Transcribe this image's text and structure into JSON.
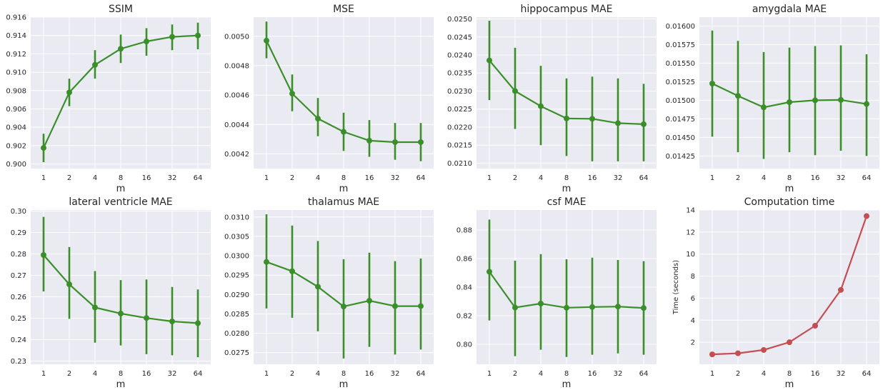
{
  "colors": {
    "green": "#3a8f28",
    "red": "#c44e52",
    "panel_bg": "#eaeaf2",
    "grid": "#ffffff"
  },
  "chart_data": [
    {
      "type": "line",
      "title": "SSIM",
      "xlabel": "m",
      "ylabel": "",
      "categories": [
        "1",
        "2",
        "4",
        "8",
        "16",
        "32",
        "64"
      ],
      "values": [
        0.90175,
        0.9078,
        0.9108,
        0.91255,
        0.91335,
        0.91385,
        0.914
      ],
      "error_low": [
        0.9002,
        0.9063,
        0.9093,
        0.911,
        0.9118,
        0.9124,
        0.9125
      ],
      "error_high": [
        0.9033,
        0.9093,
        0.9124,
        0.9141,
        0.9148,
        0.9152,
        0.9154
      ],
      "ylim": [
        0.8995,
        0.916
      ],
      "yticks": [
        0.9,
        0.902,
        0.904,
        0.906,
        0.908,
        0.91,
        0.912,
        0.914,
        0.916
      ],
      "yticklabels": [
        "0.900",
        "0.902",
        "0.904",
        "0.906",
        "0.908",
        "0.910",
        "0.912",
        "0.914",
        "0.916"
      ],
      "color": "#3a8f28"
    },
    {
      "type": "line",
      "title": "MSE",
      "xlabel": "m",
      "ylabel": "",
      "categories": [
        "1",
        "2",
        "4",
        "8",
        "16",
        "32",
        "64"
      ],
      "values": [
        0.00497,
        0.00461,
        0.00444,
        0.00435,
        0.00429,
        0.00428,
        0.00428
      ],
      "error_low": [
        0.00485,
        0.00449,
        0.00432,
        0.00422,
        0.00418,
        0.00416,
        0.00415
      ],
      "error_high": [
        0.0051,
        0.00474,
        0.00458,
        0.00448,
        0.00443,
        0.00441,
        0.00441
      ],
      "ylim": [
        0.0041,
        0.00513
      ],
      "yticks": [
        0.0042,
        0.0044,
        0.0046,
        0.0048,
        0.005
      ],
      "yticklabels": [
        "0.0042",
        "0.0044",
        "0.0046",
        "0.0048",
        "0.0050"
      ],
      "color": "#3a8f28"
    },
    {
      "type": "line",
      "title": "hippocampus MAE",
      "xlabel": "m",
      "ylabel": "",
      "categories": [
        "1",
        "2",
        "4",
        "8",
        "16",
        "32",
        "64"
      ],
      "values": [
        0.02385,
        0.023,
        0.02258,
        0.02224,
        0.02223,
        0.02211,
        0.02208
      ],
      "error_low": [
        0.02275,
        0.02195,
        0.0215,
        0.0212,
        0.02105,
        0.02105,
        0.02105
      ],
      "error_high": [
        0.02495,
        0.0242,
        0.0237,
        0.02335,
        0.0234,
        0.02335,
        0.0232
      ],
      "ylim": [
        0.02085,
        0.02505
      ],
      "yticks": [
        0.021,
        0.0215,
        0.022,
        0.0225,
        0.023,
        0.0235,
        0.024,
        0.0245,
        0.025
      ],
      "yticklabels": [
        "0.0210",
        "0.0215",
        "0.0220",
        "0.0225",
        "0.0230",
        "0.0235",
        "0.0240",
        "0.0245",
        "0.0250"
      ],
      "color": "#3a8f28"
    },
    {
      "type": "line",
      "title": "amygdala MAE",
      "xlabel": "m",
      "ylabel": "",
      "categories": [
        "1",
        "2",
        "4",
        "8",
        "16",
        "32",
        "64"
      ],
      "values": [
        0.015225,
        0.01506,
        0.014905,
        0.014975,
        0.015,
        0.015005,
        0.01495
      ],
      "error_low": [
        0.01451,
        0.0143,
        0.01421,
        0.0143,
        0.01426,
        0.01432,
        0.01425
      ],
      "error_high": [
        0.01594,
        0.0158,
        0.01565,
        0.01571,
        0.01573,
        0.01574,
        0.01562
      ],
      "ylim": [
        0.01408,
        0.01612
      ],
      "yticks": [
        0.01425,
        0.0145,
        0.01475,
        0.015,
        0.01525,
        0.0155,
        0.01575,
        0.016
      ],
      "yticklabels": [
        "0.01425",
        "0.01450",
        "0.01475",
        "0.01500",
        "0.01525",
        "0.01550",
        "0.01575",
        "0.01600"
      ],
      "color": "#3a8f28"
    },
    {
      "type": "line",
      "title": "lateral ventricle MAE",
      "xlabel": "m",
      "ylabel": "",
      "categories": [
        "1",
        "2",
        "4",
        "8",
        "16",
        "32",
        "64"
      ],
      "values": [
        0.2795,
        0.2658,
        0.255,
        0.2522,
        0.2501,
        0.2485,
        0.2477
      ],
      "error_low": [
        0.2625,
        0.2497,
        0.2386,
        0.2373,
        0.2332,
        0.2327,
        0.2318
      ],
      "error_high": [
        0.2973,
        0.2832,
        0.272,
        0.2678,
        0.2681,
        0.2646,
        0.2634
      ],
      "ylim": [
        0.2285,
        0.3005
      ],
      "yticks": [
        0.23,
        0.24,
        0.25,
        0.26,
        0.27,
        0.28,
        0.29,
        0.3
      ],
      "yticklabels": [
        "0.23",
        "0.24",
        "0.25",
        "0.26",
        "0.27",
        "0.28",
        "0.29",
        "0.30"
      ],
      "color": "#3a8f28"
    },
    {
      "type": "line",
      "title": "thalamus MAE",
      "xlabel": "m",
      "ylabel": "",
      "categories": [
        "1",
        "2",
        "4",
        "8",
        "16",
        "32",
        "64"
      ],
      "values": [
        0.02984,
        0.0296,
        0.0292,
        0.02869,
        0.02884,
        0.0287,
        0.0287
      ],
      "error_low": [
        0.02864,
        0.0284,
        0.02805,
        0.02735,
        0.02765,
        0.02745,
        0.02758
      ],
      "error_high": [
        0.03107,
        0.03078,
        0.03038,
        0.02991,
        0.03008,
        0.02986,
        0.02993
      ],
      "ylim": [
        0.0272,
        0.03118
      ],
      "yticks": [
        0.0275,
        0.028,
        0.0285,
        0.029,
        0.0295,
        0.03,
        0.0305,
        0.031
      ],
      "yticklabels": [
        "0.0275",
        "0.0280",
        "0.0285",
        "0.0290",
        "0.0295",
        "0.0300",
        "0.0305",
        "0.0310"
      ],
      "color": "#3a8f28"
    },
    {
      "type": "line",
      "title": "csf MAE",
      "xlabel": "m",
      "ylabel": "",
      "categories": [
        "1",
        "2",
        "4",
        "8",
        "16",
        "32",
        "64"
      ],
      "values": [
        0.8508,
        0.8257,
        0.8285,
        0.8256,
        0.8261,
        0.8264,
        0.8254
      ],
      "error_low": [
        0.8167,
        0.7917,
        0.7962,
        0.7911,
        0.7927,
        0.7936,
        0.7927
      ],
      "error_high": [
        0.8873,
        0.8585,
        0.8631,
        0.8595,
        0.8606,
        0.859,
        0.8582
      ],
      "ylim": [
        0.786,
        0.894
      ],
      "yticks": [
        0.8,
        0.82,
        0.84,
        0.86,
        0.88
      ],
      "yticklabels": [
        "0.80",
        "0.82",
        "0.84",
        "0.86",
        "0.88"
      ],
      "color": "#3a8f28"
    },
    {
      "type": "line",
      "title": "Computation time",
      "xlabel": "m",
      "ylabel": "Time (seconds)",
      "categories": [
        "1",
        "2",
        "4",
        "8",
        "16",
        "32",
        "64"
      ],
      "values": [
        0.9,
        1.0,
        1.3,
        2.0,
        3.5,
        6.75,
        13.45
      ],
      "ylim": [
        0.0,
        14.0
      ],
      "yticks": [
        2,
        4,
        6,
        8,
        10,
        12,
        14
      ],
      "yticklabels": [
        "2",
        "4",
        "6",
        "8",
        "10",
        "12",
        "14"
      ],
      "color": "#c44e52"
    }
  ]
}
